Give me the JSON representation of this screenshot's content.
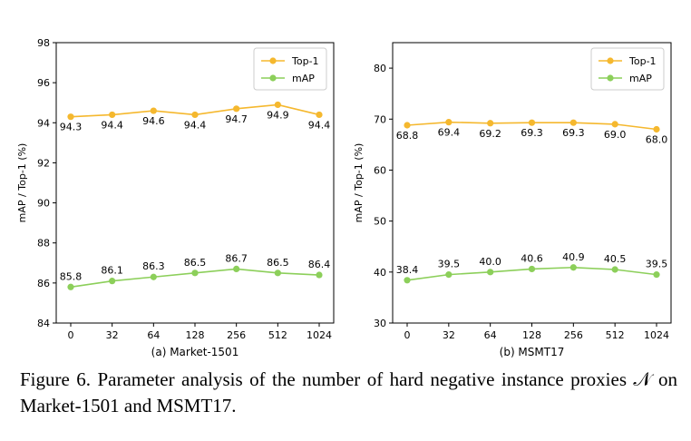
{
  "chart_data": [
    {
      "type": "line",
      "title": "",
      "xlabel": "(a) Market-1501",
      "ylabel": "mAP / Top-1 (%)",
      "categories": [
        "0",
        "32",
        "64",
        "128",
        "256",
        "512",
        "1024"
      ],
      "ylim": [
        84,
        98
      ],
      "yticks": [
        84,
        86,
        88,
        90,
        92,
        94,
        96,
        98
      ],
      "legend": "top-right",
      "grid": false,
      "series": [
        {
          "name": "Top-1",
          "color": "#f5b82e",
          "values": [
            94.3,
            94.4,
            94.6,
            94.4,
            94.7,
            94.9,
            94.4
          ],
          "labels": [
            "94.3",
            "94.4",
            "94.6",
            "94.4",
            "94.7",
            "94.9",
            "94.4"
          ]
        },
        {
          "name": "mAP",
          "color": "#8ccf5a",
          "values": [
            85.8,
            86.1,
            86.3,
            86.5,
            86.7,
            86.5,
            86.4
          ],
          "labels": [
            "85.8",
            "86.1",
            "86.3",
            "86.5",
            "86.7",
            "86.5",
            "86.4"
          ]
        }
      ]
    },
    {
      "type": "line",
      "title": "",
      "xlabel": "(b) MSMT17",
      "ylabel": "mAP / Top-1 (%)",
      "categories": [
        "0",
        "32",
        "64",
        "128",
        "256",
        "512",
        "1024"
      ],
      "ylim": [
        30,
        85
      ],
      "yticks": [
        30,
        40,
        50,
        60,
        70,
        80
      ],
      "legend": "top-right",
      "grid": false,
      "series": [
        {
          "name": "Top-1",
          "color": "#f5b82e",
          "values": [
            68.8,
            69.4,
            69.2,
            69.3,
            69.3,
            69.0,
            68.0
          ],
          "labels": [
            "68.8",
            "69.4",
            "69.2",
            "69.3",
            "69.3",
            "69.0",
            "68.0"
          ]
        },
        {
          "name": "mAP",
          "color": "#8ccf5a",
          "values": [
            38.4,
            39.5,
            40.0,
            40.6,
            40.9,
            40.5,
            39.5
          ],
          "labels": [
            "38.4",
            "39.5",
            "40.0",
            "40.6",
            "40.9",
            "40.5",
            "39.5"
          ]
        }
      ]
    }
  ],
  "caption": "Figure 6.   Parameter analysis of the number of hard negative instance proxies 𝒩 on Market-1501 and MSMT17."
}
